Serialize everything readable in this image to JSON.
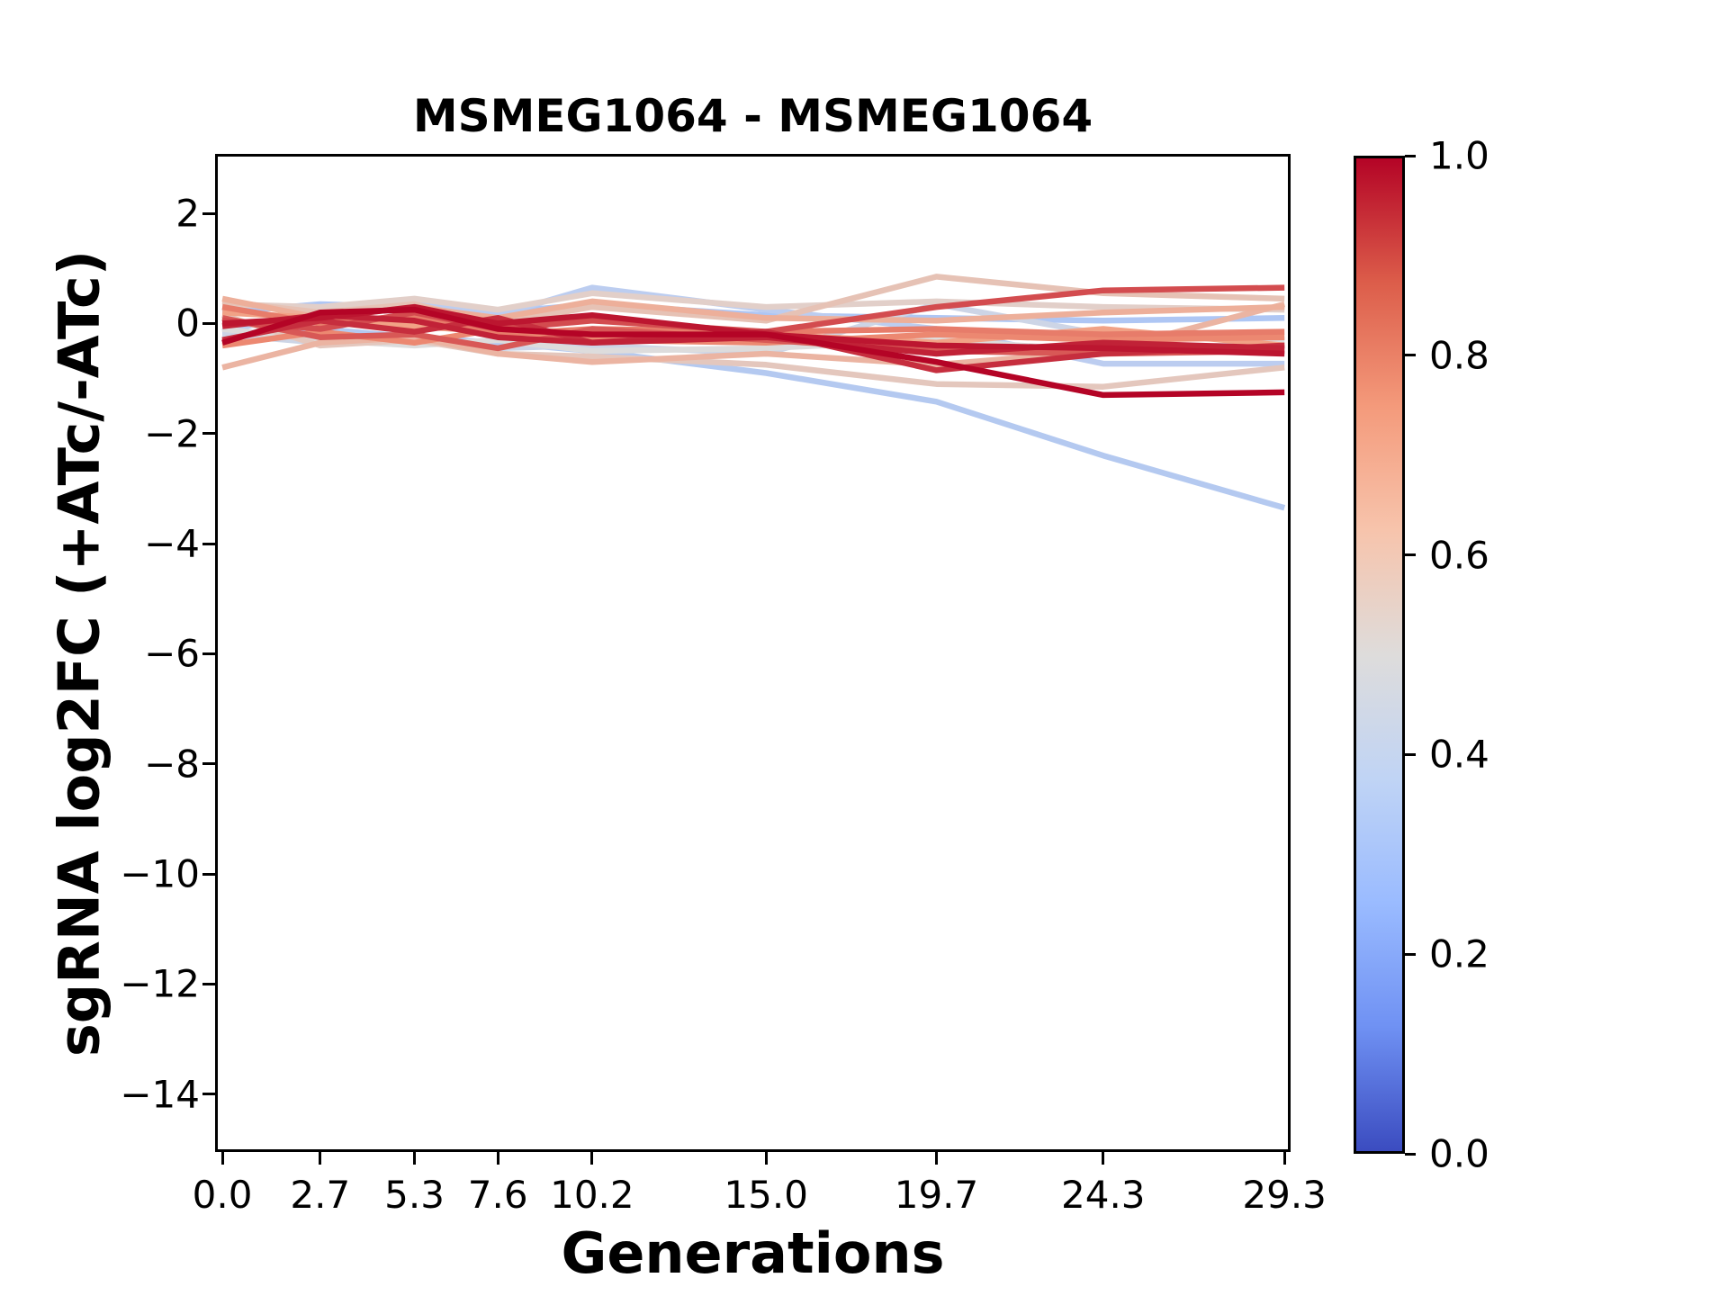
{
  "chart_data": {
    "type": "line",
    "title": "MSMEG1064 - MSMEG1064",
    "xlabel": "Generations",
    "ylabel": "sgRNA log2FC (+ATc/-ATc)",
    "x": [
      0.0,
      2.7,
      5.3,
      7.6,
      10.2,
      15.0,
      19.7,
      24.3,
      29.3
    ],
    "xtick_labels": [
      "0.0",
      "2.7",
      "5.3",
      "7.6",
      "10.2",
      "15.0",
      "19.7",
      "24.3",
      "29.3"
    ],
    "ytick_values": [
      2,
      0,
      -2,
      -4,
      -6,
      -8,
      -10,
      -12,
      -14
    ],
    "ytick_labels": [
      "2",
      "0",
      "−2",
      "−4",
      "−6",
      "−8",
      "−10",
      "−12",
      "−14"
    ],
    "xlim": [
      -0.2,
      29.47
    ],
    "ylim": [
      -15.05,
      3.08
    ],
    "grid": false,
    "legend": "colorbar-right",
    "background_color": "#ffffff",
    "axis_color": "#000000",
    "series": [
      {
        "colormap_value": 0.38,
        "color": "#aec6f4",
        "y": [
          0.2,
          0.35,
          0.3,
          0.2,
          0.35,
          0.15,
          0.1,
          0.05,
          0.1
        ]
      },
      {
        "colormap_value": 0.4,
        "color": "#b4c9f0",
        "y": [
          -0.2,
          -0.1,
          -0.25,
          -0.35,
          -0.5,
          -0.9,
          -1.42,
          -2.4,
          -3.35
        ]
      },
      {
        "colormap_value": 0.42,
        "color": "#bccdf0",
        "y": [
          -0.15,
          0.25,
          0.35,
          0.15,
          0.65,
          0.25,
          -0.1,
          -0.73,
          -0.73
        ]
      },
      {
        "colormap_value": 0.45,
        "color": "#cdd5e6",
        "y": [
          -0.2,
          -0.35,
          -0.25,
          -0.45,
          -0.4,
          -0.55,
          0.35,
          -0.2,
          -0.3
        ]
      },
      {
        "colormap_value": 0.5,
        "color": "#dddcdc",
        "y": [
          -0.1,
          -0.3,
          -0.4,
          -0.3,
          -0.5,
          -0.45,
          -0.3,
          -0.5,
          -0.35
        ]
      },
      {
        "colormap_value": 0.55,
        "color": "#e2cfc9",
        "y": [
          0.35,
          0.3,
          0.45,
          0.25,
          0.55,
          0.3,
          0.4,
          0.3,
          0.25
        ]
      },
      {
        "colormap_value": 0.58,
        "color": "#e4c7bd",
        "y": [
          0.15,
          -0.4,
          -0.3,
          -0.55,
          -0.6,
          -0.75,
          -1.1,
          -1.15,
          -0.8
        ]
      },
      {
        "colormap_value": 0.6,
        "color": "#e6c2b5",
        "y": [
          0.4,
          0.2,
          0.35,
          0.0,
          0.3,
          0.05,
          0.85,
          0.55,
          0.45
        ]
      },
      {
        "colormap_value": 0.65,
        "color": "#ebb4a2",
        "y": [
          -0.8,
          -0.35,
          -0.25,
          -0.55,
          -0.7,
          -0.55,
          -0.75,
          -0.5,
          0.35
        ]
      },
      {
        "colormap_value": 0.67,
        "color": "#edaf9a",
        "y": [
          0.45,
          0.1,
          0.3,
          0.1,
          0.4,
          0.1,
          0.05,
          0.2,
          0.3
        ]
      },
      {
        "colormap_value": 0.72,
        "color": "#f1a286",
        "y": [
          0.2,
          0.1,
          -0.05,
          -0.15,
          -0.25,
          -0.2,
          -0.35,
          -0.1,
          -0.4
        ]
      },
      {
        "colormap_value": 0.78,
        "color": "#ec8871",
        "y": [
          -0.4,
          -0.15,
          -0.35,
          -0.1,
          -0.3,
          -0.35,
          -0.2,
          -0.3,
          -0.25
        ]
      },
      {
        "colormap_value": 0.8,
        "color": "#e77c6a",
        "y": [
          0.3,
          0.0,
          0.15,
          -0.2,
          -0.1,
          -0.15,
          -0.1,
          -0.2,
          -0.15
        ]
      },
      {
        "colormap_value": 0.86,
        "color": "#d85856",
        "y": [
          0.1,
          -0.25,
          -0.2,
          -0.45,
          -0.1,
          -0.3,
          -0.5,
          -0.55,
          -0.5
        ]
      },
      {
        "colormap_value": 0.88,
        "color": "#d34c4f",
        "y": [
          0.05,
          -0.1,
          0.2,
          -0.1,
          0.05,
          -0.15,
          0.3,
          0.6,
          0.65
        ]
      },
      {
        "colormap_value": 0.93,
        "color": "#c62e3e",
        "y": [
          -0.3,
          0.05,
          -0.15,
          0.1,
          -0.35,
          -0.15,
          -0.85,
          -0.55,
          -0.4
        ]
      },
      {
        "colormap_value": 0.95,
        "color": "#c12237",
        "y": [
          -0.05,
          0.15,
          0.05,
          -0.25,
          -0.35,
          -0.25,
          -0.55,
          -0.35,
          -0.45
        ]
      },
      {
        "colormap_value": 0.97,
        "color": "#bc1630",
        "y": [
          0.0,
          0.1,
          0.3,
          0.0,
          0.15,
          -0.2,
          -0.4,
          -0.45,
          -0.55
        ]
      },
      {
        "colormap_value": 1.0,
        "color": "#b40426",
        "y": [
          -0.35,
          0.2,
          0.25,
          -0.1,
          -0.2,
          -0.2,
          -0.7,
          -1.3,
          -1.25
        ]
      }
    ],
    "colorbar": {
      "colormap": "coolwarm",
      "min": 0.0,
      "max": 1.0,
      "tick_labels": [
        "1.0",
        "0.8",
        "0.6",
        "0.4",
        "0.2",
        "0.0"
      ],
      "tick_values": [
        1.0,
        0.8,
        0.6,
        0.4,
        0.2,
        0.0
      ],
      "gradient_top_to_bottom": [
        "#b40426",
        "#dc5d4a",
        "#f49a7b",
        "#f7c4ac",
        "#dedcdb",
        "#c0d4f5",
        "#9abbff",
        "#6f91f3",
        "#3b4cc0"
      ]
    }
  }
}
